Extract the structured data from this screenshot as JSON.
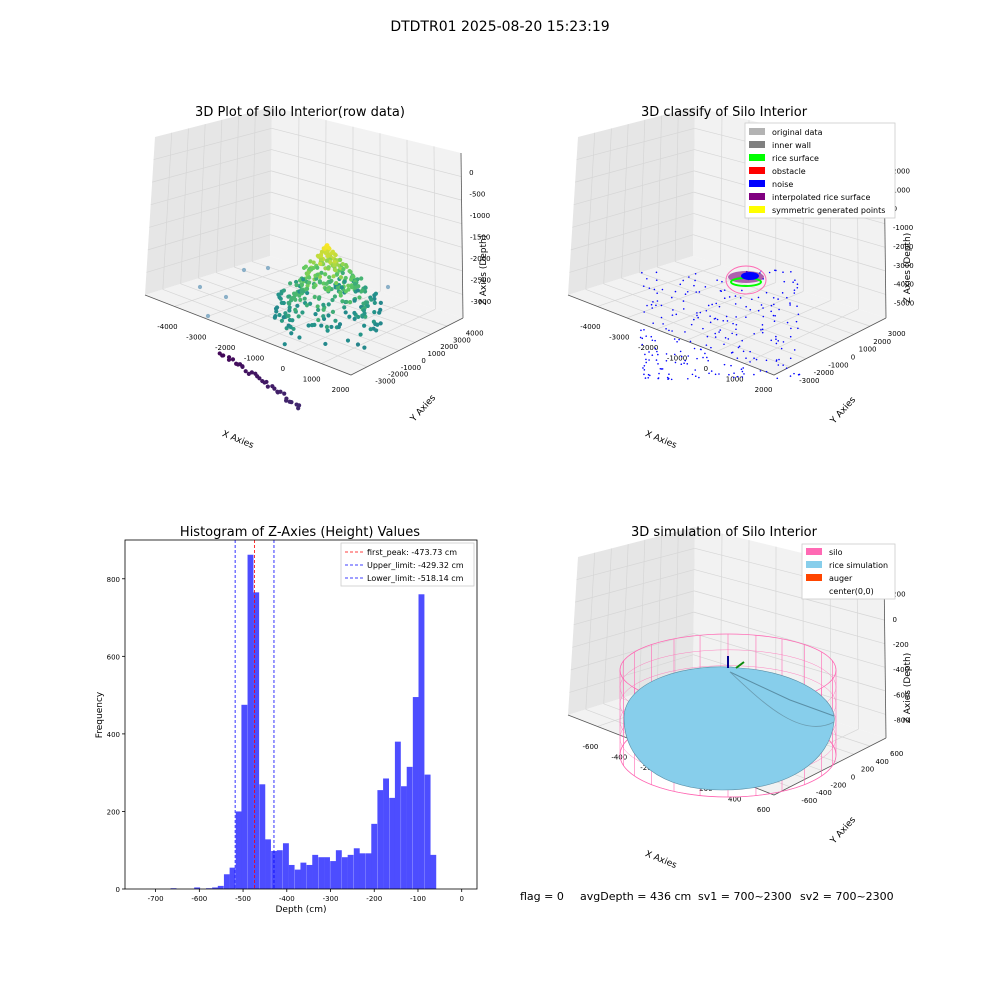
{
  "figure_title": "DTDTR01 2025-08-20 15:23:19",
  "footer": {
    "flag": "flag = 0",
    "avg": "avgDepth = 436 cm",
    "sv1": "sv1 = 700~2300",
    "sv2": "sv2 = 700~2300"
  },
  "colors": {
    "pane": "#f2f2f2",
    "pane_side": "#e6e6e6",
    "grid": "#d6d6d6",
    "hist_bar": "#4d4dff",
    "peak_line": "#ff0000",
    "limit_line": "#0000ff",
    "silo": "#ff69b4",
    "rice_sim": "#87ceeb",
    "auger": "#ff4500"
  },
  "chart_data": [
    {
      "type": "scatter",
      "title": "3D Plot of Silo Interior(row data)",
      "xlabel": "X Axies",
      "ylabel": "Y Axies",
      "zlabel": "Z Axies (Depth)",
      "xticks": [
        "-4000",
        "-3000",
        "-2000",
        "-1000",
        "0",
        "1000",
        "2000"
      ],
      "yticks": [
        "-3000",
        "-2000",
        "-1000",
        "0",
        "1000",
        "2000",
        "3000",
        "4000"
      ],
      "zticks": [
        "0",
        "-500",
        "-1000",
        "-1500",
        "-2000",
        "-2500",
        "-3000"
      ],
      "colormap": "viridis by depth",
      "grid": true
    },
    {
      "type": "scatter",
      "title": "3D classify of Silo Interior",
      "xlabel": "X Axies",
      "ylabel": "Y Axies",
      "zlabel": "Z Axies (Depth)",
      "xticks": [
        "-4000",
        "-3000",
        "-2000",
        "-1000",
        "0",
        "1000",
        "2000"
      ],
      "yticks": [
        "-3000",
        "-2000",
        "-1000",
        "0",
        "1000",
        "2000",
        "3000"
      ],
      "zticks": [
        "2000",
        "1000",
        "0",
        "-1000",
        "-2000",
        "-3000",
        "-4000",
        "-5000"
      ],
      "legend_position": "top-right",
      "legend": [
        {
          "label": "original data",
          "color": "#b3b3b3"
        },
        {
          "label": "inner wall",
          "color": "#808080"
        },
        {
          "label": "rice surface",
          "color": "#00ff00"
        },
        {
          "label": "obstacle",
          "color": "#ff0000"
        },
        {
          "label": "noise",
          "color": "#0000ff"
        },
        {
          "label": "interpolated rice surface",
          "color": "#800080"
        },
        {
          "label": "symmetric generated points",
          "color": "#ffff00"
        }
      ],
      "grid": true
    },
    {
      "type": "bar",
      "title": "Histogram of Z-Axies (Height) Values",
      "xlabel": "Depth (cm)",
      "ylabel": "Frequency",
      "xlim": [
        -770,
        35
      ],
      "ylim": [
        0,
        900
      ],
      "xticks": [
        -700,
        -600,
        -500,
        -400,
        -300,
        -200,
        -100,
        0
      ],
      "yticks": [
        0,
        200,
        400,
        600,
        800
      ],
      "bin_width": 13.5,
      "bins": [
        {
          "x": -659,
          "y": 2
        },
        {
          "x": -605,
          "y": 4
        },
        {
          "x": -578,
          "y": 2
        },
        {
          "x": -564,
          "y": 4
        },
        {
          "x": -551,
          "y": 8
        },
        {
          "x": -537,
          "y": 38
        },
        {
          "x": -524,
          "y": 55
        },
        {
          "x": -510,
          "y": 200
        },
        {
          "x": -497,
          "y": 475
        },
        {
          "x": -483,
          "y": 862
        },
        {
          "x": -470,
          "y": 765
        },
        {
          "x": -456,
          "y": 270
        },
        {
          "x": -443,
          "y": 128
        },
        {
          "x": -429,
          "y": 98
        },
        {
          "x": -416,
          "y": 100
        },
        {
          "x": -402,
          "y": 118
        },
        {
          "x": -389,
          "y": 62
        },
        {
          "x": -375,
          "y": 50
        },
        {
          "x": -362,
          "y": 68
        },
        {
          "x": -348,
          "y": 62
        },
        {
          "x": -335,
          "y": 88
        },
        {
          "x": -321,
          "y": 82
        },
        {
          "x": -308,
          "y": 82
        },
        {
          "x": -294,
          "y": 72
        },
        {
          "x": -281,
          "y": 100
        },
        {
          "x": -267,
          "y": 82
        },
        {
          "x": -254,
          "y": 88
        },
        {
          "x": -240,
          "y": 105
        },
        {
          "x": -227,
          "y": 92
        },
        {
          "x": -213,
          "y": 92
        },
        {
          "x": -200,
          "y": 168
        },
        {
          "x": -186,
          "y": 255
        },
        {
          "x": -173,
          "y": 285
        },
        {
          "x": -159,
          "y": 235
        },
        {
          "x": -146,
          "y": 380
        },
        {
          "x": -132,
          "y": 265
        },
        {
          "x": -119,
          "y": 315
        },
        {
          "x": -105,
          "y": 495
        },
        {
          "x": -92,
          "y": 760
        },
        {
          "x": -78,
          "y": 295
        },
        {
          "x": -65,
          "y": 88
        }
      ],
      "vlines": [
        {
          "x": -473.73,
          "label": "first_peak: -473.73 cm",
          "color": "#ff0000"
        },
        {
          "x": -429.32,
          "label": "Upper_limit: -429.32 cm",
          "color": "#0000ff"
        },
        {
          "x": -518.14,
          "label": "Lower_limit: -518.14 cm",
          "color": "#0000ff"
        }
      ],
      "legend_position": "top-right"
    },
    {
      "type": "surface",
      "title": "3D simulation of Silo Interior",
      "xlabel": "X Axies",
      "ylabel": "Y Axies",
      "zlabel": "Z Axies (Depth)",
      "xticks": [
        "-600",
        "-400",
        "-200",
        "0",
        "200",
        "400",
        "600"
      ],
      "yticks": [
        "-600",
        "-400",
        "-200",
        "0",
        "200",
        "400",
        "600"
      ],
      "zticks": [
        "200",
        "0",
        "-200",
        "-400",
        "-600",
        "-800"
      ],
      "legend_position": "top-right",
      "legend": [
        {
          "label": "silo",
          "color": "#ff69b4"
        },
        {
          "label": "rice simulation",
          "color": "#87ceeb"
        },
        {
          "label": "auger",
          "color": "#ff4500"
        },
        {
          "label": "center(0,0)",
          "color": ""
        }
      ],
      "grid": true
    }
  ]
}
